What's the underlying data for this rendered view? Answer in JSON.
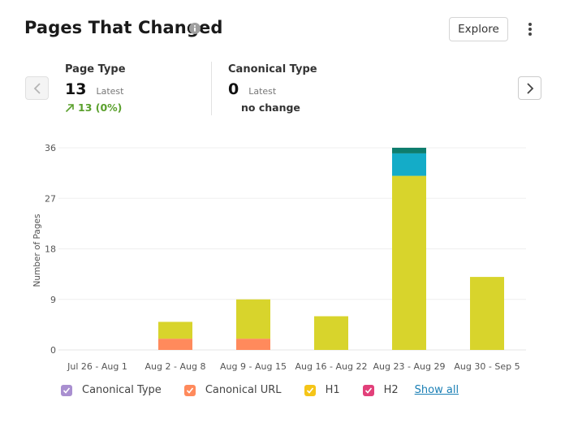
{
  "header": {
    "title": "Pages That Changed",
    "explore_label": "Explore"
  },
  "metrics": [
    {
      "label": "Page Type",
      "value": "13",
      "suffix": "Latest",
      "change": "13 (0%)"
    },
    {
      "label": "Canonical Type",
      "value": "0",
      "suffix": "Latest",
      "change": "no change"
    }
  ],
  "legend": {
    "items": [
      {
        "label": "Canonical Type",
        "color": "#a98fd0"
      },
      {
        "label": "Canonical URL",
        "color": "#ff8a5c"
      },
      {
        "label": "H1",
        "color": "#f5c518"
      },
      {
        "label": "H2",
        "color": "#e2407a"
      }
    ],
    "show_all_label": "Show all"
  },
  "chart_data": {
    "type": "bar",
    "stacked": true,
    "ylabel": "Number of Pages",
    "xlabel": "",
    "ylim": [
      0,
      36
    ],
    "yticks": [
      0,
      9,
      18,
      27,
      36
    ],
    "grid": true,
    "categories": [
      "Jul 26 - Aug 1",
      "Aug 2 - Aug 8",
      "Aug 9 - Aug 15",
      "Aug 16 - Aug 22",
      "Aug 23 - Aug 29",
      "Aug 30 - Sep 5"
    ],
    "series": [
      {
        "color": "#ff8a5c",
        "values": [
          0,
          2,
          2,
          0,
          0,
          0
        ]
      },
      {
        "color": "#d8d42c",
        "values": [
          0,
          3,
          7,
          6,
          31,
          13
        ]
      },
      {
        "color": "#14acc8",
        "values": [
          0,
          0,
          0,
          0,
          4,
          0
        ]
      },
      {
        "color": "#0e7d6e",
        "values": [
          0,
          0,
          0,
          0,
          1,
          0
        ]
      }
    ]
  }
}
